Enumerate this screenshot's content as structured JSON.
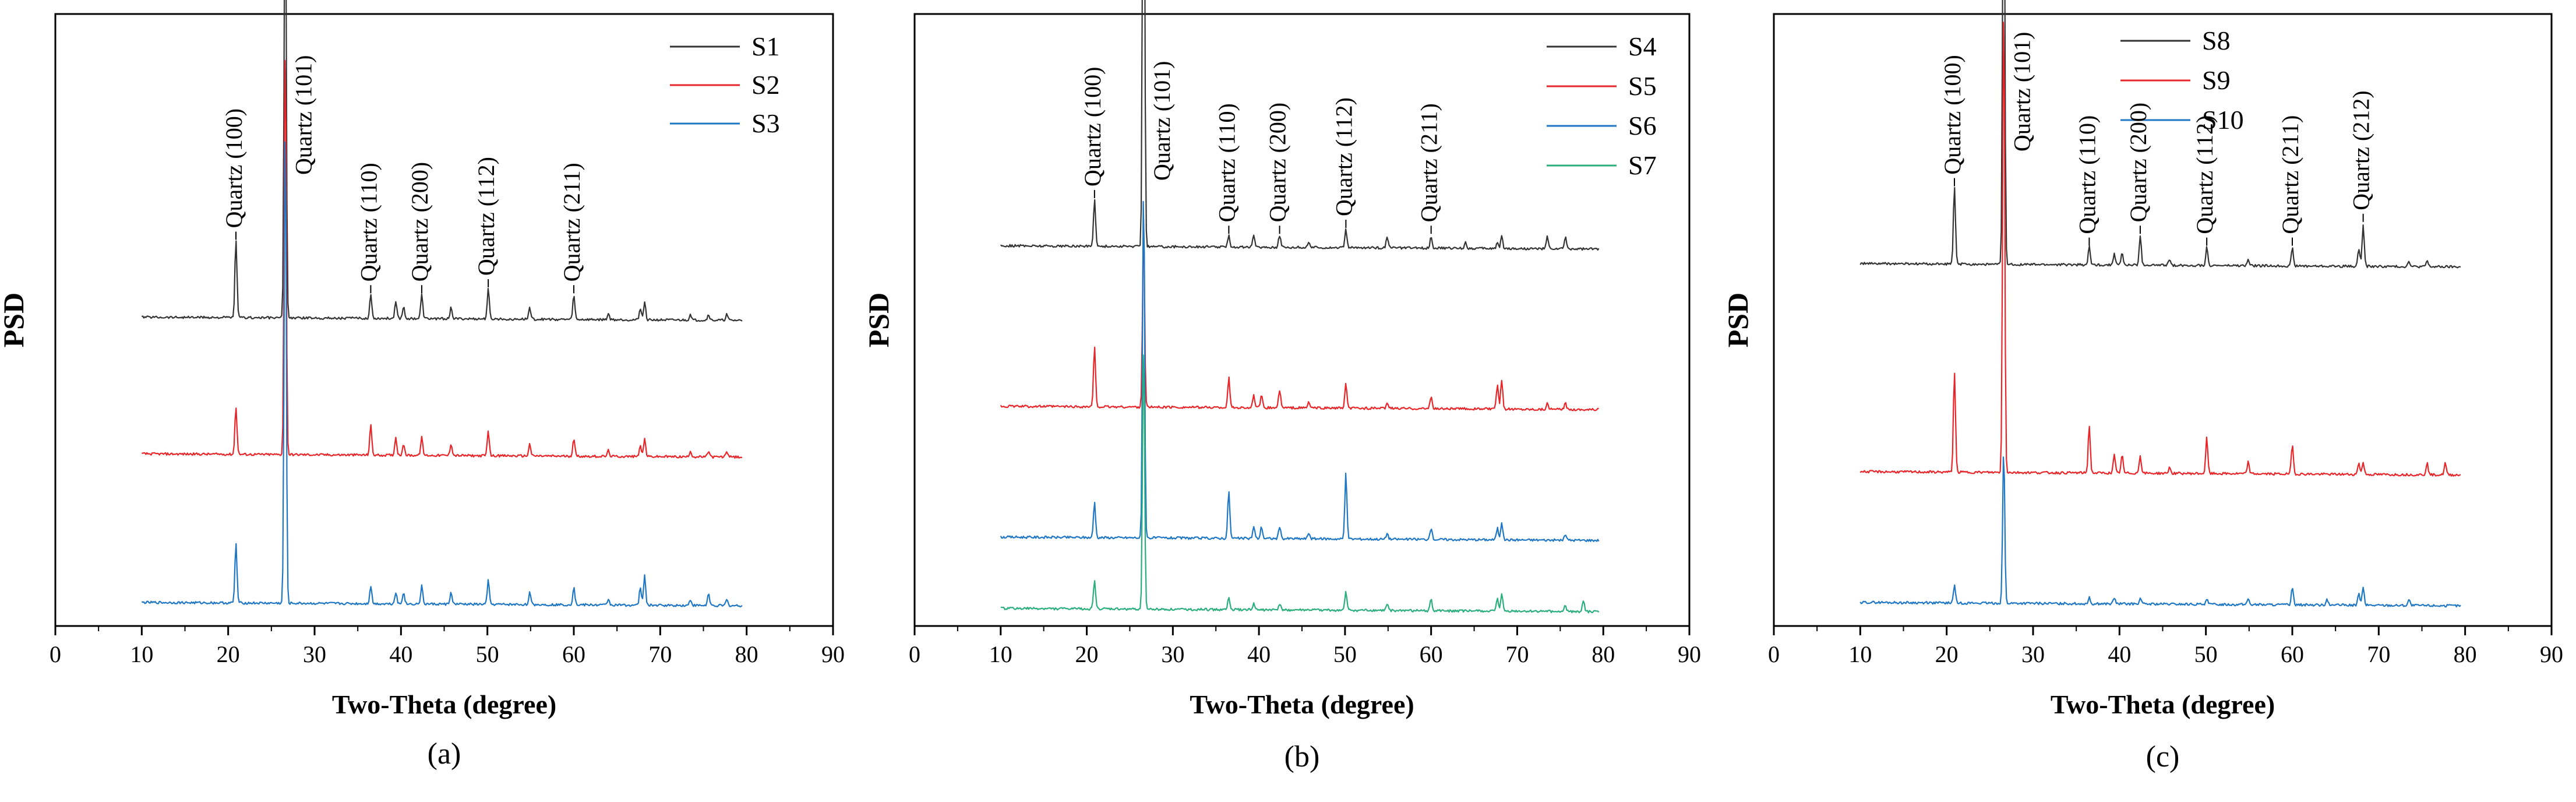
{
  "figure": {
    "panel_labels": [
      "(a)",
      "(b)",
      "(c)"
    ]
  },
  "chart_data": [
    {
      "type": "line",
      "panel": "(a)",
      "xlabel": "Two-Theta (degree)",
      "ylabel": "PSD",
      "xlim": [
        0,
        90
      ],
      "xticks": [
        0,
        10,
        20,
        30,
        40,
        50,
        60,
        70,
        80,
        90
      ],
      "legend_position": "top-right",
      "peak_labels": [
        {
          "text": "Quartz (100)",
          "x": 20.9
        },
        {
          "text": "Quartz (101)",
          "x": 26.6
        },
        {
          "text": "Quartz (110)",
          "x": 36.5
        },
        {
          "text": "Quartz (200)",
          "x": 42.4
        },
        {
          "text": "Quartz (112)",
          "x": 50.1
        },
        {
          "text": "Quartz (211)",
          "x": 60.0
        }
      ],
      "series": [
        {
          "name": "S1",
          "color": "#333333",
          "baseline": 0.5,
          "peaks": [
            [
              20.9,
              0.13
            ],
            [
              26.6,
              0.8
            ],
            [
              36.5,
              0.04
            ],
            [
              39.4,
              0.03
            ],
            [
              40.3,
              0.02
            ],
            [
              42.4,
              0.04
            ],
            [
              45.8,
              0.02
            ],
            [
              50.1,
              0.05
            ],
            [
              54.9,
              0.02
            ],
            [
              60.0,
              0.04
            ],
            [
              64.0,
              0.01
            ],
            [
              67.7,
              0.02
            ],
            [
              68.2,
              0.03
            ],
            [
              73.5,
              0.01
            ],
            [
              75.6,
              0.01
            ],
            [
              77.7,
              0.01
            ]
          ]
        },
        {
          "name": "S2",
          "color": "#e8262a",
          "baseline": 0.27,
          "peaks": [
            [
              20.9,
              0.08
            ],
            [
              26.6,
              0.7
            ],
            [
              36.5,
              0.05
            ],
            [
              39.4,
              0.03
            ],
            [
              40.3,
              0.02
            ],
            [
              42.4,
              0.03
            ],
            [
              45.8,
              0.02
            ],
            [
              50.1,
              0.04
            ],
            [
              54.9,
              0.02
            ],
            [
              60.0,
              0.03
            ],
            [
              64.0,
              0.01
            ],
            [
              67.7,
              0.02
            ],
            [
              68.2,
              0.03
            ],
            [
              73.5,
              0.01
            ],
            [
              75.6,
              0.01
            ],
            [
              77.7,
              0.01
            ]
          ]
        },
        {
          "name": "S3",
          "color": "#1f77c4",
          "baseline": 0.02,
          "peaks": [
            [
              20.9,
              0.1
            ],
            [
              26.6,
              0.82
            ],
            [
              36.5,
              0.03
            ],
            [
              39.4,
              0.02
            ],
            [
              40.3,
              0.02
            ],
            [
              42.4,
              0.03
            ],
            [
              45.8,
              0.02
            ],
            [
              50.1,
              0.04
            ],
            [
              54.9,
              0.02
            ],
            [
              60.0,
              0.03
            ],
            [
              64.0,
              0.01
            ],
            [
              67.7,
              0.03
            ],
            [
              68.2,
              0.05
            ],
            [
              73.5,
              0.01
            ],
            [
              75.6,
              0.02
            ],
            [
              77.7,
              0.01
            ]
          ]
        }
      ]
    },
    {
      "type": "line",
      "panel": "(b)",
      "xlabel": "Two-Theta (degree)",
      "ylabel": "PSD",
      "xlim": [
        0,
        90
      ],
      "xticks": [
        0,
        10,
        20,
        30,
        40,
        50,
        60,
        70,
        80,
        90
      ],
      "legend_position": "top-right",
      "peak_labels": [
        {
          "text": "Quartz (100)",
          "x": 20.9
        },
        {
          "text": "Quartz (101)",
          "x": 26.6
        },
        {
          "text": "Quartz (110)",
          "x": 36.5
        },
        {
          "text": "Quartz (200)",
          "x": 42.4
        },
        {
          "text": "Quartz (112)",
          "x": 50.1
        },
        {
          "text": "Quartz (211)",
          "x": 60.0
        }
      ],
      "series": [
        {
          "name": "S4",
          "color": "#333333",
          "baseline": 0.62,
          "peaks": [
            [
              20.9,
              0.08
            ],
            [
              26.6,
              0.98
            ],
            [
              36.5,
              0.02
            ],
            [
              39.4,
              0.02
            ],
            [
              42.4,
              0.02
            ],
            [
              45.8,
              0.01
            ],
            [
              50.1,
              0.03
            ],
            [
              54.9,
              0.02
            ],
            [
              60.0,
              0.02
            ],
            [
              64.0,
              0.01
            ],
            [
              67.7,
              0.01
            ],
            [
              68.2,
              0.02
            ],
            [
              73.5,
              0.02
            ],
            [
              75.6,
              0.02
            ]
          ]
        },
        {
          "name": "S5",
          "color": "#e8262a",
          "baseline": 0.35,
          "peaks": [
            [
              20.9,
              0.1
            ],
            [
              26.6,
              0.3
            ],
            [
              36.5,
              0.05
            ],
            [
              39.4,
              0.02
            ],
            [
              40.3,
              0.02
            ],
            [
              42.4,
              0.03
            ],
            [
              45.8,
              0.01
            ],
            [
              50.1,
              0.04
            ],
            [
              54.9,
              0.01
            ],
            [
              60.0,
              0.02
            ],
            [
              67.7,
              0.04
            ],
            [
              68.2,
              0.05
            ],
            [
              73.5,
              0.01
            ],
            [
              75.6,
              0.01
            ]
          ]
        },
        {
          "name": "S6",
          "color": "#1f77c4",
          "baseline": 0.13,
          "peaks": [
            [
              20.9,
              0.06
            ],
            [
              26.6,
              0.6
            ],
            [
              36.5,
              0.08
            ],
            [
              39.4,
              0.02
            ],
            [
              40.3,
              0.02
            ],
            [
              42.4,
              0.02
            ],
            [
              45.8,
              0.01
            ],
            [
              50.1,
              0.11
            ],
            [
              54.9,
              0.01
            ],
            [
              60.0,
              0.02
            ],
            [
              67.7,
              0.02
            ],
            [
              68.2,
              0.03
            ],
            [
              75.6,
              0.01
            ]
          ]
        },
        {
          "name": "S7",
          "color": "#2aae7c",
          "baseline": 0.01,
          "peaks": [
            [
              20.9,
              0.05
            ],
            [
              26.6,
              0.45
            ],
            [
              36.5,
              0.02
            ],
            [
              39.4,
              0.01
            ],
            [
              42.4,
              0.01
            ],
            [
              50.1,
              0.03
            ],
            [
              54.9,
              0.01
            ],
            [
              60.0,
              0.02
            ],
            [
              67.7,
              0.02
            ],
            [
              68.2,
              0.03
            ],
            [
              75.6,
              0.01
            ],
            [
              77.7,
              0.02
            ]
          ]
        }
      ]
    },
    {
      "type": "line",
      "panel": "(c)",
      "xlabel": "Two-Theta (degree)",
      "ylabel": "PSD",
      "xlim": [
        0,
        90
      ],
      "xticks": [
        0,
        10,
        20,
        30,
        40,
        50,
        60,
        70,
        80,
        90
      ],
      "legend_position": "top-right",
      "peak_labels": [
        {
          "text": "Quartz (100)",
          "x": 20.9
        },
        {
          "text": "Quartz (101)",
          "x": 26.6
        },
        {
          "text": "Quartz (110)",
          "x": 36.5
        },
        {
          "text": "Quartz (200)",
          "x": 42.4
        },
        {
          "text": "Quartz (112)",
          "x": 50.1
        },
        {
          "text": "Quartz (211)",
          "x": 60.0
        },
        {
          "text": "Quartz (212)",
          "x": 68.2
        }
      ],
      "series": [
        {
          "name": "S8",
          "color": "#333333",
          "baseline": 0.59,
          "peaks": [
            [
              20.9,
              0.13
            ],
            [
              26.6,
              0.85
            ],
            [
              36.5,
              0.03
            ],
            [
              39.4,
              0.02
            ],
            [
              40.3,
              0.02
            ],
            [
              42.4,
              0.05
            ],
            [
              45.8,
              0.01
            ],
            [
              50.1,
              0.03
            ],
            [
              54.9,
              0.01
            ],
            [
              60.0,
              0.03
            ],
            [
              67.7,
              0.03
            ],
            [
              68.2,
              0.07
            ],
            [
              73.5,
              0.01
            ],
            [
              75.6,
              0.01
            ]
          ]
        },
        {
          "name": "S9",
          "color": "#e8262a",
          "baseline": 0.24,
          "peaks": [
            [
              20.9,
              0.17
            ],
            [
              26.6,
              0.8
            ],
            [
              36.5,
              0.08
            ],
            [
              39.4,
              0.03
            ],
            [
              40.3,
              0.03
            ],
            [
              42.4,
              0.03
            ],
            [
              45.8,
              0.01
            ],
            [
              50.1,
              0.06
            ],
            [
              54.9,
              0.02
            ],
            [
              60.0,
              0.05
            ],
            [
              67.7,
              0.02
            ],
            [
              68.2,
              0.02
            ],
            [
              75.6,
              0.02
            ],
            [
              77.7,
              0.02
            ]
          ]
        },
        {
          "name": "S10",
          "color": "#1f77c4",
          "baseline": 0.02,
          "peaks": [
            [
              20.9,
              0.03
            ],
            [
              26.6,
              0.26
            ],
            [
              36.5,
              0.01
            ],
            [
              39.4,
              0.01
            ],
            [
              42.4,
              0.01
            ],
            [
              50.1,
              0.01
            ],
            [
              54.9,
              0.01
            ],
            [
              60.0,
              0.03
            ],
            [
              64.0,
              0.01
            ],
            [
              67.7,
              0.02
            ],
            [
              68.2,
              0.03
            ],
            [
              73.5,
              0.01
            ]
          ]
        }
      ]
    }
  ]
}
